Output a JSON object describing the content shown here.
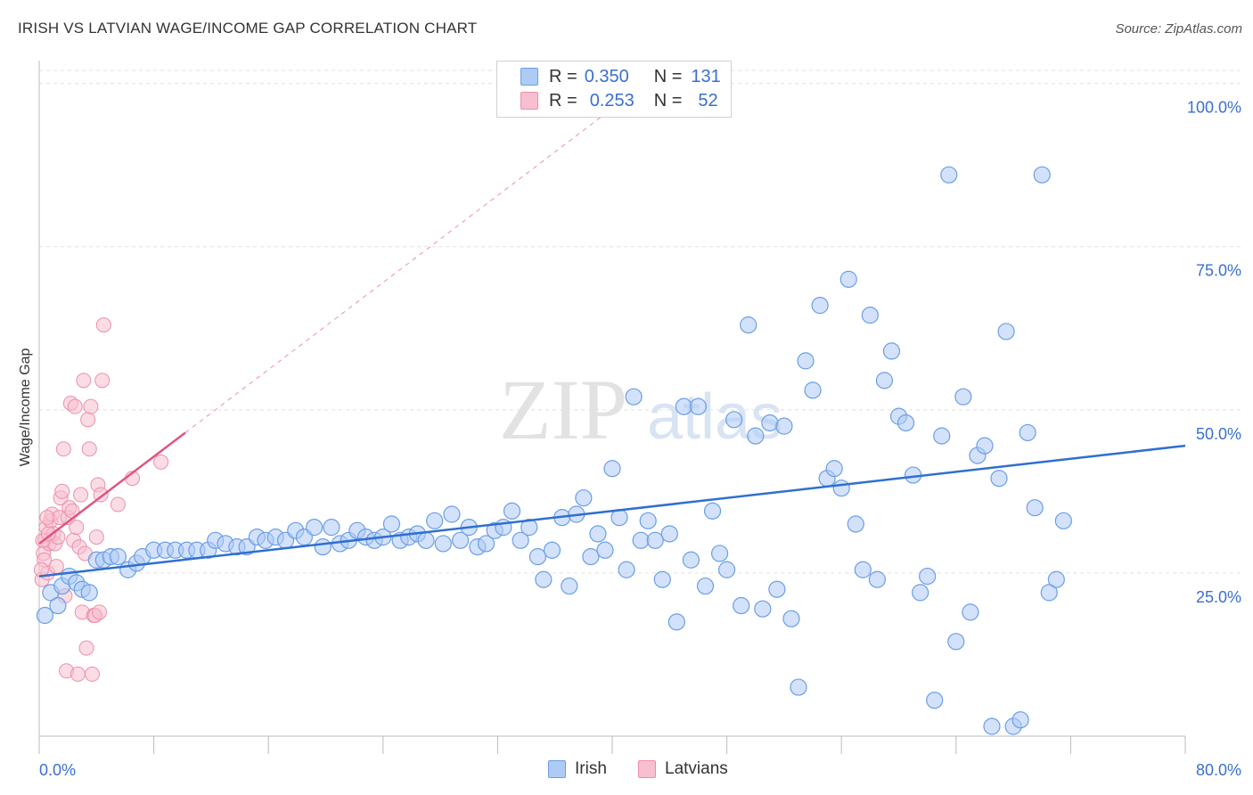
{
  "title": "IRISH VS LATVIAN WAGE/INCOME GAP CORRELATION CHART",
  "source": "Source: ZipAtlas.com",
  "watermark": {
    "zip": "ZIP",
    "atlas": "atlas"
  },
  "legend": {
    "irish": {
      "r_label": "R =",
      "r_value": "0.350",
      "n_label": "N =",
      "n_value": "131"
    },
    "latvians": {
      "r_label": "R =",
      "r_value": "0.253",
      "n_label": "N =",
      "n_value": "52"
    }
  },
  "bottom_legend": {
    "irish": "Irish",
    "latvians": "Latvians"
  },
  "colors": {
    "irish_fill": "#aecbf5",
    "irish_stroke": "#6a9ee6",
    "irish_line": "#2f6fcf",
    "latvian_fill": "#f7bfd0",
    "latvian_stroke": "#ec8faa",
    "latvian_line": "#e0557f",
    "tick_label": "#3a6fd0",
    "grid": "#e0e0e0"
  },
  "chart_data": {
    "type": "scatter",
    "title": "IRISH VS LATVIAN WAGE/INCOME GAP CORRELATION CHART",
    "xlabel": "",
    "ylabel": "Wage/Income Gap",
    "xlim": [
      0,
      80
    ],
    "ylim": [
      0,
      102
    ],
    "x_tick_labels": [
      "0.0%",
      "80.0%"
    ],
    "y_ticks": [
      25,
      50,
      75,
      100
    ],
    "y_tick_labels": [
      "25.0%",
      "50.0%",
      "75.0%",
      "100.0%"
    ],
    "series": [
      {
        "name": "Irish",
        "r": 0.35,
        "n": 131,
        "trend": {
          "x0": 0,
          "y0": 24.5,
          "x1": 80,
          "y1": 44.5
        },
        "points": [
          [
            0.4,
            18.5
          ],
          [
            0.8,
            22
          ],
          [
            1.3,
            20
          ],
          [
            1.6,
            23
          ],
          [
            2.1,
            24.5
          ],
          [
            2.6,
            23.5
          ],
          [
            3.0,
            22.5
          ],
          [
            3.5,
            22
          ],
          [
            4.0,
            27
          ],
          [
            4.5,
            27
          ],
          [
            5.0,
            27.5
          ],
          [
            5.5,
            27.5
          ],
          [
            6.2,
            25.5
          ],
          [
            6.8,
            26.5
          ],
          [
            7.2,
            27.5
          ],
          [
            8.0,
            28.5
          ],
          [
            8.8,
            28.5
          ],
          [
            9.5,
            28.5
          ],
          [
            10.3,
            28.5
          ],
          [
            11.0,
            28.5
          ],
          [
            11.8,
            28.5
          ],
          [
            12.3,
            30
          ],
          [
            13.0,
            29.5
          ],
          [
            13.8,
            29
          ],
          [
            14.5,
            29
          ],
          [
            15.2,
            30.5
          ],
          [
            15.8,
            30
          ],
          [
            16.5,
            30.5
          ],
          [
            17.2,
            30
          ],
          [
            17.9,
            31.5
          ],
          [
            18.5,
            30.5
          ],
          [
            19.2,
            32
          ],
          [
            19.8,
            29
          ],
          [
            20.4,
            32
          ],
          [
            21.0,
            29.5
          ],
          [
            21.6,
            30
          ],
          [
            22.2,
            31.5
          ],
          [
            22.8,
            30.5
          ],
          [
            23.4,
            30
          ],
          [
            24.0,
            30.5
          ],
          [
            24.6,
            32.5
          ],
          [
            25.2,
            30
          ],
          [
            25.8,
            30.5
          ],
          [
            26.4,
            31
          ],
          [
            27.0,
            30
          ],
          [
            27.6,
            33
          ],
          [
            28.2,
            29.5
          ],
          [
            28.8,
            34
          ],
          [
            29.4,
            30
          ],
          [
            30.0,
            32
          ],
          [
            30.6,
            29
          ],
          [
            31.2,
            29.5
          ],
          [
            31.8,
            31.5
          ],
          [
            32.4,
            32
          ],
          [
            33.0,
            34.5
          ],
          [
            33.6,
            30
          ],
          [
            34.2,
            32
          ],
          [
            34.8,
            27.5
          ],
          [
            35.2,
            24
          ],
          [
            35.8,
            28.5
          ],
          [
            36.5,
            33.5
          ],
          [
            37.0,
            23
          ],
          [
            37.5,
            34
          ],
          [
            38.0,
            36.5
          ],
          [
            38.5,
            27.5
          ],
          [
            39.0,
            31
          ],
          [
            39.5,
            28.5
          ],
          [
            40.0,
            41
          ],
          [
            40.5,
            33.5
          ],
          [
            41.0,
            25.5
          ],
          [
            41.5,
            52
          ],
          [
            42.0,
            30
          ],
          [
            42.5,
            33
          ],
          [
            43.0,
            30
          ],
          [
            43.5,
            24
          ],
          [
            44.0,
            31
          ],
          [
            44.5,
            17.5
          ],
          [
            45.0,
            50.5
          ],
          [
            45.5,
            27
          ],
          [
            46.0,
            50.5
          ],
          [
            46.5,
            23
          ],
          [
            47.0,
            34.5
          ],
          [
            47.5,
            28
          ],
          [
            48.0,
            25.5
          ],
          [
            48.5,
            48.5
          ],
          [
            49.0,
            20
          ],
          [
            49.5,
            63
          ],
          [
            50.0,
            46
          ],
          [
            50.5,
            19.5
          ],
          [
            51.0,
            48
          ],
          [
            51.5,
            22.5
          ],
          [
            52.0,
            47.5
          ],
          [
            52.5,
            18
          ],
          [
            53.0,
            7.5
          ],
          [
            53.5,
            57.5
          ],
          [
            54.0,
            53
          ],
          [
            54.5,
            66
          ],
          [
            55.0,
            39.5
          ],
          [
            55.5,
            41
          ],
          [
            56.0,
            38
          ],
          [
            56.5,
            70
          ],
          [
            57.0,
            32.5
          ],
          [
            57.5,
            25.5
          ],
          [
            58.0,
            64.5
          ],
          [
            58.5,
            24
          ],
          [
            59.0,
            54.5
          ],
          [
            59.5,
            59
          ],
          [
            60.0,
            49
          ],
          [
            60.5,
            48
          ],
          [
            61.0,
            40
          ],
          [
            61.5,
            22
          ],
          [
            62.0,
            24.5
          ],
          [
            62.5,
            5.5
          ],
          [
            63.0,
            46
          ],
          [
            63.5,
            86
          ],
          [
            64.0,
            14.5
          ],
          [
            64.5,
            52
          ],
          [
            65.0,
            19
          ],
          [
            65.5,
            43
          ],
          [
            66.0,
            44.5
          ],
          [
            66.5,
            1.5
          ],
          [
            67.0,
            39.5
          ],
          [
            67.5,
            62
          ],
          [
            68.0,
            1.5
          ],
          [
            68.5,
            2.5
          ],
          [
            69.0,
            46.5
          ],
          [
            69.5,
            35
          ],
          [
            70.0,
            86
          ],
          [
            70.5,
            22
          ],
          [
            71.0,
            24
          ],
          [
            71.5,
            33
          ]
        ]
      },
      {
        "name": "Latvians",
        "r": 0.253,
        "n": 52,
        "trend": {
          "x0": 0,
          "y0": 29.5,
          "x1": 10.2,
          "y1": 46.5
        },
        "points": [
          [
            0.2,
            24
          ],
          [
            0.3,
            28
          ],
          [
            0.4,
            30
          ],
          [
            0.5,
            32
          ],
          [
            0.6,
            25
          ],
          [
            0.7,
            29.5
          ],
          [
            0.8,
            33
          ],
          [
            0.9,
            34
          ],
          [
            1.0,
            31
          ],
          [
            1.1,
            29.5
          ],
          [
            1.2,
            26
          ],
          [
            1.3,
            30.5
          ],
          [
            1.4,
            33.5
          ],
          [
            1.5,
            36.5
          ],
          [
            1.6,
            37.5
          ],
          [
            1.7,
            44
          ],
          [
            1.8,
            21.5
          ],
          [
            1.9,
            10
          ],
          [
            2.0,
            33.5
          ],
          [
            2.1,
            35
          ],
          [
            2.2,
            51
          ],
          [
            2.3,
            34.5
          ],
          [
            2.4,
            30
          ],
          [
            2.5,
            50.5
          ],
          [
            2.6,
            32
          ],
          [
            2.7,
            9.5
          ],
          [
            2.8,
            29
          ],
          [
            2.9,
            37
          ],
          [
            3.0,
            19
          ],
          [
            3.1,
            54.5
          ],
          [
            3.2,
            28
          ],
          [
            3.3,
            13.5
          ],
          [
            3.4,
            48.5
          ],
          [
            3.5,
            44
          ],
          [
            3.6,
            50.5
          ],
          [
            3.7,
            9.5
          ],
          [
            3.8,
            18.5
          ],
          [
            3.9,
            18.5
          ],
          [
            4.0,
            30.5
          ],
          [
            4.1,
            38.5
          ],
          [
            4.2,
            19
          ],
          [
            4.3,
            37
          ],
          [
            4.4,
            54.5
          ],
          [
            4.5,
            63
          ],
          [
            0.25,
            30
          ],
          [
            0.35,
            27
          ],
          [
            0.55,
            33.5
          ],
          [
            0.65,
            31
          ],
          [
            5.5,
            35.5
          ],
          [
            6.5,
            39.5
          ],
          [
            8.5,
            42
          ],
          [
            0.15,
            25.5
          ]
        ]
      }
    ]
  }
}
